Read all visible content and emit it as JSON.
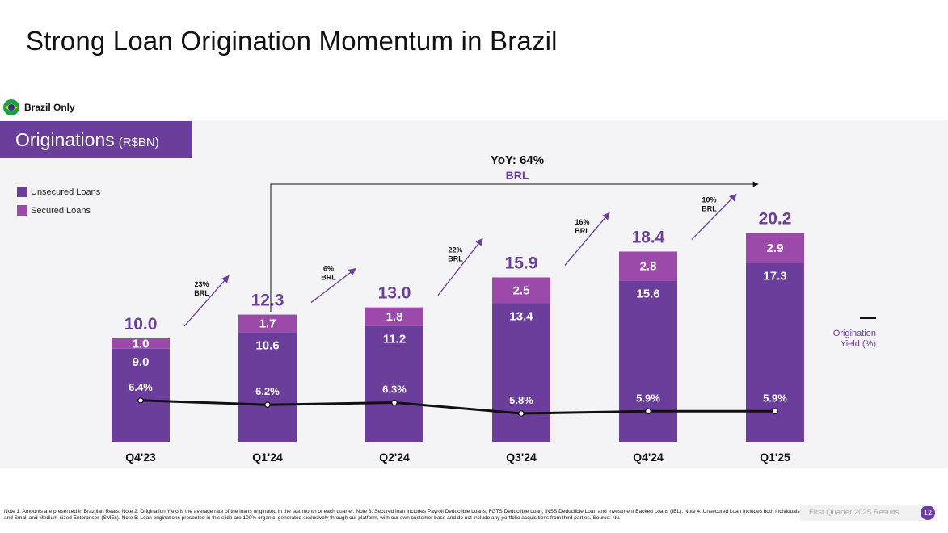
{
  "title": "Strong Loan Origination Momentum in Brazil",
  "region_label": "Brazil Only",
  "section": {
    "label": "Originations",
    "unit": "(R$BN)"
  },
  "legend": {
    "unsecured": "Unsecured Loans",
    "secured": "Secured Loans",
    "yield_line_1": "Origination",
    "yield_line_2": "Yield (%)"
  },
  "yoy": {
    "label": "YoY: 64%",
    "currency": "BRL"
  },
  "colors": {
    "unsecured": "#6b3e9c",
    "secured": "#9b4aa9",
    "line": "#111111",
    "panel": "#f4f4f6",
    "accent": "#6c3e9c"
  },
  "chart_data": {
    "type": "bar",
    "stacked": true,
    "categories": [
      "Q4'23",
      "Q1'24",
      "Q2'24",
      "Q3'24",
      "Q4'24",
      "Q1'25"
    ],
    "series": [
      {
        "name": "Unsecured Loans",
        "values": [
          9.0,
          10.6,
          11.2,
          13.4,
          15.6,
          17.3
        ],
        "labels": [
          "9.0",
          "10.6",
          "11.2",
          "13.4",
          "15.6",
          "17.3"
        ]
      },
      {
        "name": "Secured Loans",
        "values": [
          1.0,
          1.7,
          1.8,
          2.5,
          2.8,
          2.9
        ],
        "labels": [
          "1.0",
          "1.7",
          "1.8",
          "2.5",
          "2.8",
          "2.9"
        ]
      }
    ],
    "totals": [
      10.0,
      12.3,
      13.0,
      15.9,
      18.4,
      20.2
    ],
    "total_labels": [
      "10.0",
      "12.3",
      "13.0",
      "15.9",
      "18.4",
      "20.2"
    ],
    "line": {
      "name": "Origination Yield (%)",
      "values": [
        6.4,
        6.2,
        6.3,
        5.8,
        5.9,
        5.9
      ],
      "labels": [
        "6.4%",
        "6.2%",
        "6.3%",
        "5.8%",
        "5.9%",
        "5.9%"
      ]
    },
    "growth": [
      {
        "pct": "23%",
        "cur": "BRL"
      },
      {
        "pct": "6%",
        "cur": "BRL"
      },
      {
        "pct": "22%",
        "cur": "BRL"
      },
      {
        "pct": "16%",
        "cur": "BRL"
      },
      {
        "pct": "10%",
        "cur": "BRL"
      }
    ],
    "ylim": [
      0,
      22
    ]
  },
  "footer": {
    "note": "Note 1: Amounts are presented in Brazilian Reais. Note 2: Origination Yield is the average rate of the loans originated in the last month of each quarter. Note 3: Secured loan includes Payroll Deductible Loans, FGTS Deductible Loan, INSS Deductible Loan and Investment Backed Loans (IBL). Note 4: Unsecured Loan includes both individuals and Small and Medium-sized Enterprises (SMEs). Note 5: Loan originations presented in this slide are 100% organic, generated exclusively through our platform, with our own customer base and do not include any portfolio acquisitions from third parties. Source: Nu.",
    "report": "First Quarter 2025 Results",
    "page": "12"
  }
}
